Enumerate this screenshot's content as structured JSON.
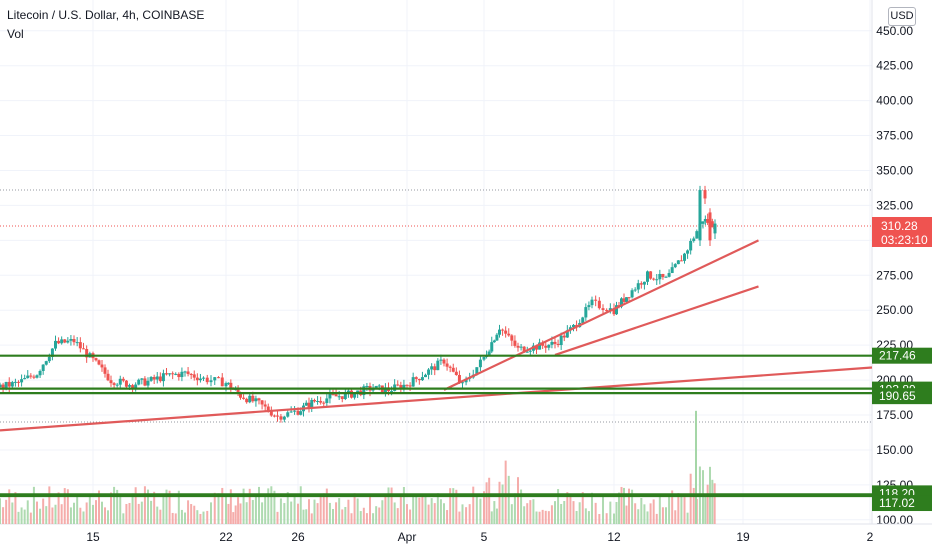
{
  "header": {
    "title": "Litecoin / U.S. Dollar, 4h, COINBASE",
    "volume_label": "Vol",
    "currency": "USD"
  },
  "colors": {
    "up": "#26a69a",
    "down": "#ef5350",
    "level_line": "#2e7d1e",
    "trend_line": "#e05a5a",
    "price_tag": "#ef5350",
    "level_tag": "#2e7d1e"
  },
  "chart_data": {
    "type": "candlestick",
    "symbol": "Litecoin / U.S. Dollar",
    "interval": "4h",
    "exchange": "COINBASE",
    "y_ticks": [
      "450.00",
      "425.00",
      "400.00",
      "375.00",
      "350.00",
      "325.00",
      "300.00",
      "275.00",
      "250.00",
      "225.00",
      "200.00",
      "175.00",
      "150.00",
      "125.00",
      "100.00"
    ],
    "ylim": [
      97,
      462
    ],
    "x_ticks": [
      "15",
      "22",
      "26",
      "Apr",
      "5",
      "12",
      "19",
      "2"
    ],
    "last_price": "310.28",
    "countdown": "03:23:10",
    "dotted_levels": [
      336,
      170
    ],
    "levels": [
      {
        "price": 217.46,
        "label": "217.46"
      },
      {
        "price": 193.89,
        "label": "193.89"
      },
      {
        "price": 190.65,
        "label": "190.65"
      },
      {
        "price": 118.2,
        "label": "118.20"
      },
      {
        "price": 117.02,
        "label": "117.02"
      }
    ],
    "trendlines": [
      {
        "from": [
          "Mar 10",
          164
        ],
        "to": [
          "Apr 25",
          209
        ]
      },
      {
        "from": [
          "Apr 3",
          193
        ],
        "to": [
          "Apr 20",
          300
        ]
      },
      {
        "from": [
          "Apr 9",
          218
        ],
        "to": [
          "Apr 20",
          267
        ]
      }
    ],
    "price_series": [
      {
        "date": "Mar 10",
        "close": 195
      },
      {
        "date": "Mar 11",
        "close": 198
      },
      {
        "date": "Mar 12",
        "close": 205
      },
      {
        "date": "Mar 13",
        "close": 226
      },
      {
        "date": "Mar 14",
        "close": 228
      },
      {
        "date": "Mar 15",
        "close": 214
      },
      {
        "date": "Mar 16",
        "close": 200
      },
      {
        "date": "Mar 17",
        "close": 197
      },
      {
        "date": "Mar 18",
        "close": 199
      },
      {
        "date": "Mar 19",
        "close": 203
      },
      {
        "date": "Mar 20",
        "close": 205
      },
      {
        "date": "Mar 21",
        "close": 201
      },
      {
        "date": "Mar 22",
        "close": 198
      },
      {
        "date": "Mar 23",
        "close": 189
      },
      {
        "date": "Mar 24",
        "close": 183
      },
      {
        "date": "Mar 25",
        "close": 174
      },
      {
        "date": "Mar 26",
        "close": 178
      },
      {
        "date": "Mar 27",
        "close": 185
      },
      {
        "date": "Mar 28",
        "close": 188
      },
      {
        "date": "Mar 29",
        "close": 190
      },
      {
        "date": "Mar 30",
        "close": 194
      },
      {
        "date": "Mar 31",
        "close": 193
      },
      {
        "date": "Apr 1",
        "close": 197
      },
      {
        "date": "Apr 2",
        "close": 205
      },
      {
        "date": "Apr 3",
        "close": 214
      },
      {
        "date": "Apr 4",
        "close": 196
      },
      {
        "date": "Apr 5",
        "close": 216
      },
      {
        "date": "Apr 6",
        "close": 238
      },
      {
        "date": "Apr 7",
        "close": 222
      },
      {
        "date": "Apr 8",
        "close": 224
      },
      {
        "date": "Apr 9",
        "close": 226
      },
      {
        "date": "Apr 10",
        "close": 238
      },
      {
        "date": "Apr 11",
        "close": 255
      },
      {
        "date": "Apr 12",
        "close": 250
      },
      {
        "date": "Apr 13",
        "close": 262
      },
      {
        "date": "Apr 14",
        "close": 275
      },
      {
        "date": "Apr 15",
        "close": 272
      },
      {
        "date": "Apr 16",
        "close": 290
      },
      {
        "date": "Apr 17",
        "close": 315
      },
      {
        "date": "Apr 17b",
        "close": 310
      }
    ]
  }
}
